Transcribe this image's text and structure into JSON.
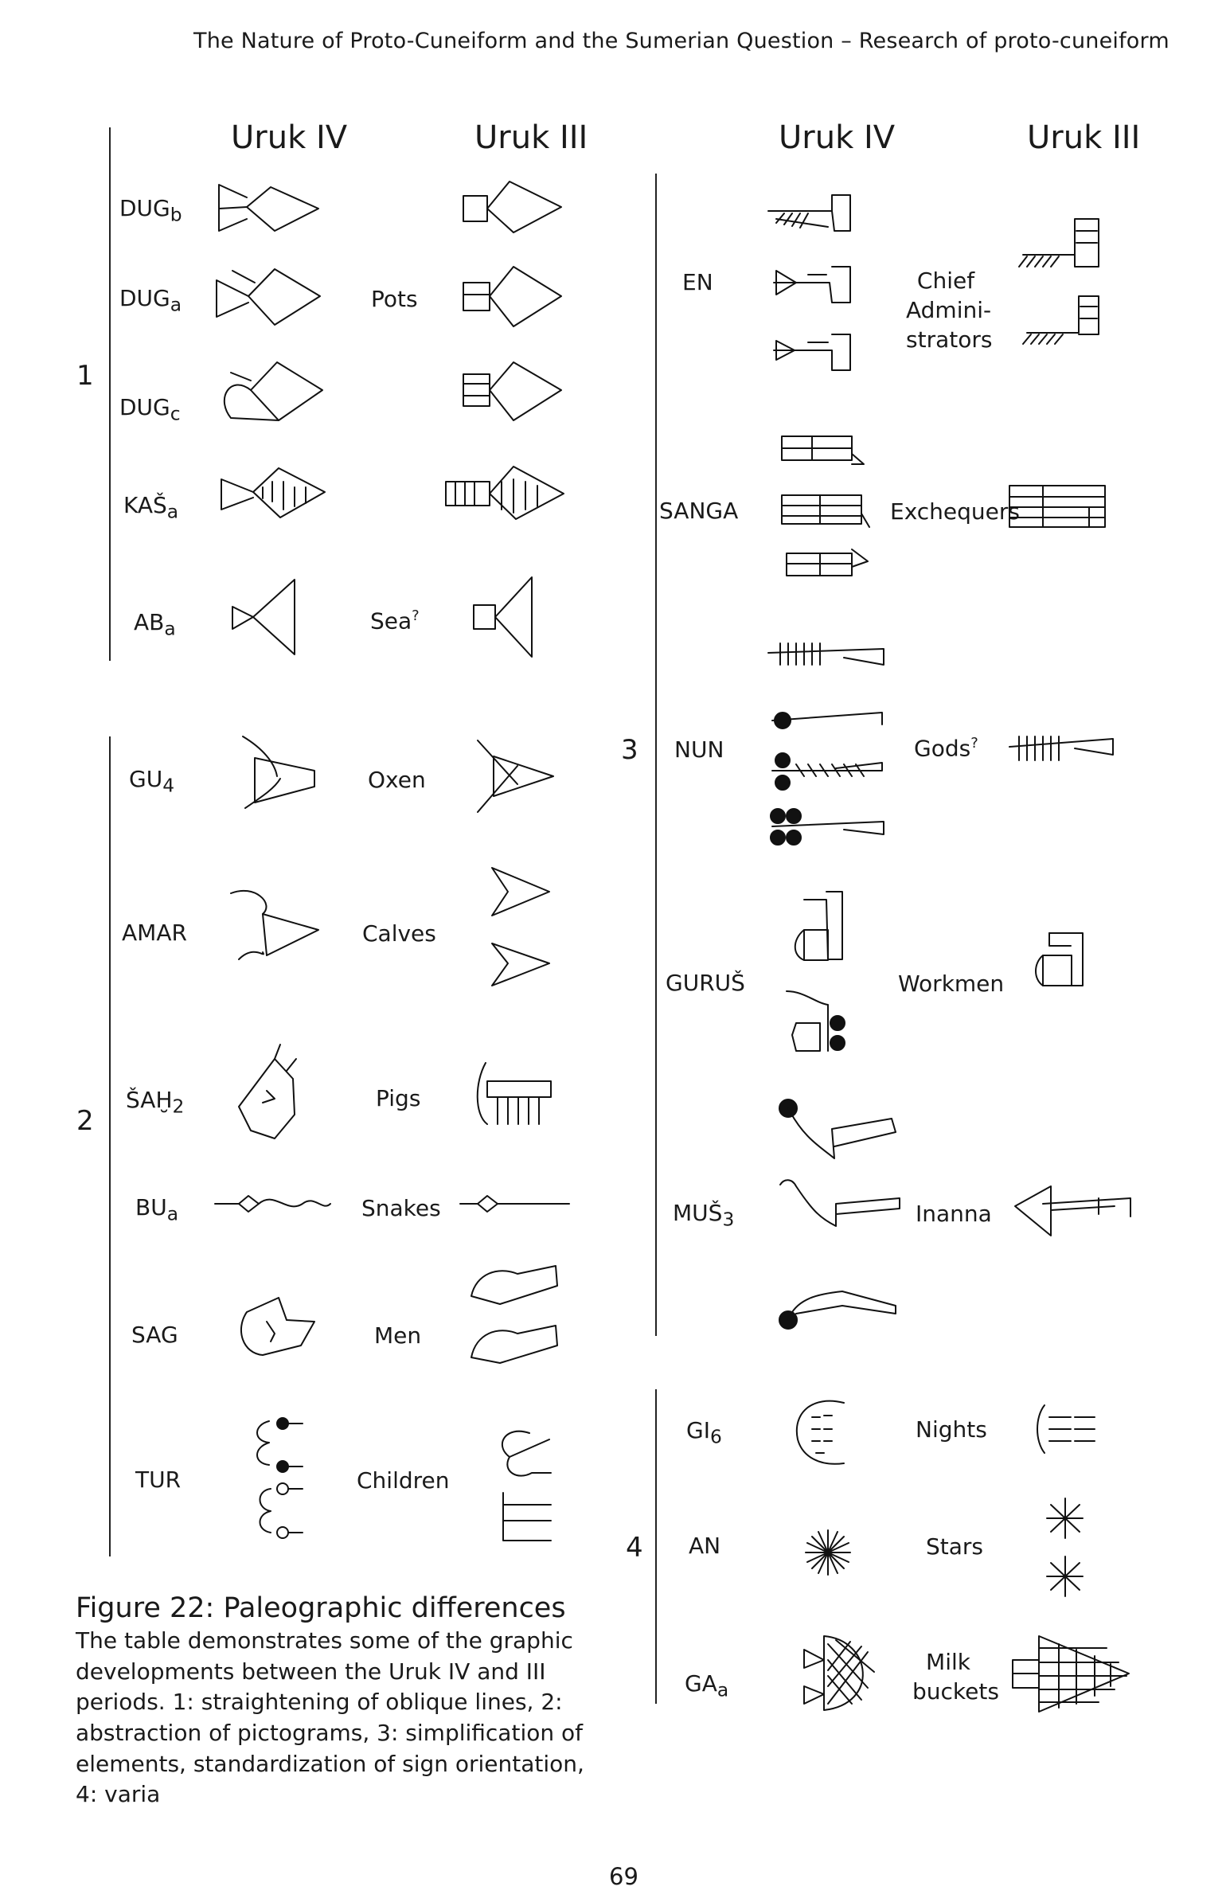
{
  "header": "The Nature of Proto-Cuneiform and the Sumerian Question – Research of proto-cuneiform",
  "column_headers": {
    "left_iv": "Uruk IV",
    "left_iii": "Uruk III",
    "right_iv": "Uruk IV",
    "right_iii": "Uruk III"
  },
  "groups": {
    "g1": "1",
    "g2": "2",
    "g3": "3",
    "g4": "4"
  },
  "left_signs": [
    {
      "name": "DUG",
      "sub": "b"
    },
    {
      "name": "DUG",
      "sub": "a",
      "meaning": "Pots"
    },
    {
      "name": "DUG",
      "sub": "c"
    },
    {
      "name": "KAŠ",
      "sub": "a"
    },
    {
      "name": "AB",
      "sub": "a",
      "meaning": "Sea",
      "sup": "?"
    },
    {
      "name": "GU",
      "sub": "4",
      "meaning": "Oxen"
    },
    {
      "name": "AMAR",
      "meaning": "Calves"
    },
    {
      "name": "ŠAḪ",
      "sub": "2",
      "meaning": "Pigs"
    },
    {
      "name": "BU",
      "sub": "a",
      "meaning": "Snakes"
    },
    {
      "name": "SAG",
      "meaning": "Men"
    },
    {
      "name": "TUR",
      "meaning": "Children"
    }
  ],
  "right_signs": [
    {
      "name": "EN",
      "meaning_l1": "Chief",
      "meaning_l2": "Admini-",
      "meaning_l3": "strators"
    },
    {
      "name": "SANGA",
      "meaning": "Exchequers"
    },
    {
      "name": "NUN",
      "meaning": "Gods",
      "sup": "?"
    },
    {
      "name": "GURUŠ",
      "meaning": "Workmen"
    },
    {
      "name": "MUŠ",
      "sub": "3",
      "meaning": "Inanna"
    },
    {
      "name": "GI",
      "sub": "6",
      "meaning": "Nights"
    },
    {
      "name": "AN",
      "meaning": "Stars"
    },
    {
      "name": "GA",
      "sub": "a",
      "meaning_l1": "Milk",
      "meaning_l2": "buckets"
    }
  ],
  "caption": {
    "title": "Figure 22: Paleographic differences",
    "text": "The table demonstrates some of the graphic developments between the Uruk IV and III periods. 1: straightening of oblique lines, 2: abstraction of pictograms, 3: simplification of elements, standardization of sign orientation, 4: varia"
  },
  "page_number": "69"
}
